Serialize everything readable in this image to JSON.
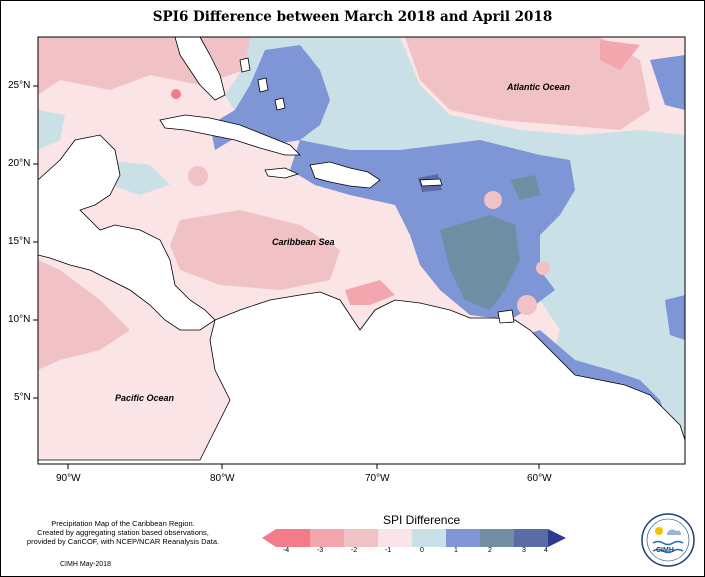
{
  "title": "SPI6 Difference between March 2018 and April 2018",
  "map": {
    "lat_labels": [
      "25°N",
      "20°N",
      "15°N",
      "10°N",
      "5°N"
    ],
    "lon_labels": [
      "90°W",
      "80°W",
      "70°W",
      "60°W"
    ],
    "place_labels": {
      "atlantic": "Atlantic Ocean",
      "caribbean": "Caribbean Sea",
      "pacific": "Pacific Ocean"
    },
    "colors": {
      "neg4": "#f47c8a",
      "neg3": "#f3a6ad",
      "neg2": "#f0c1c5",
      "neg1": "#fbe4e6",
      "pos0": "#c9e1e6",
      "pos1": "#7e95d6",
      "pos2": "#6f8ea3",
      "pos3": "#5a6ba6",
      "pos4": "#2f3a8c"
    }
  },
  "legend": {
    "title": "SPI Difference",
    "ticks": [
      "-4",
      "-3",
      "-2",
      "-1",
      "0",
      "1",
      "2",
      "3",
      "4"
    ]
  },
  "footnote": {
    "lines": [
      "Precipitation Map of the Caribbean Region.",
      "Created by aggregating station based observations,",
      "provided by CariCOF, with NCEP/NCAR Reanalysis Data."
    ],
    "credit": "CIMH May-2018"
  },
  "logo": {
    "text": "CIMH"
  }
}
